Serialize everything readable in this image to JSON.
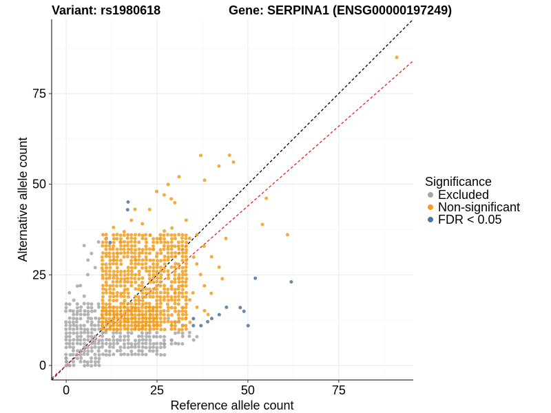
{
  "chart_data": {
    "type": "scatter",
    "title_left": "Variant: rs1980618",
    "title_right": "Gene: SERPINA1 (ENSG00000197249)",
    "xlabel": "Reference allele count",
    "ylabel": "Alternative allele count",
    "xlim": [
      -4,
      95.5
    ],
    "ylim": [
      -4,
      95.5
    ],
    "x_ticks": [
      0,
      25,
      50,
      75
    ],
    "y_ticks": [
      0,
      25,
      50,
      75
    ],
    "grid": true,
    "legend": {
      "title": "Significance",
      "position": "right",
      "entries": [
        {
          "label": "Excluded",
          "color": "#a6a6a6"
        },
        {
          "label": "Non-significant",
          "color": "#f39c1a"
        },
        {
          "label": "FDR < 0.05",
          "color": "#4a74a0"
        }
      ]
    },
    "reference_lines": [
      {
        "name": "identity (y = x)",
        "slope": 1.0,
        "intercept": 0,
        "color": "#000000",
        "dash": "dashed"
      },
      {
        "name": "fitted ratio",
        "slope": 0.88,
        "intercept": 0,
        "color": "#e8201e",
        "dash": "dashed"
      }
    ],
    "series": [
      {
        "name": "Excluded",
        "color": "#a6a6a6",
        "clusters": [
          {
            "x_range": [
              0,
              9
            ],
            "y_range": [
              0,
              17
            ],
            "density": 0.82
          },
          {
            "x_range": [
              10,
              27
            ],
            "y_range": [
              3,
              9
            ],
            "density": 0.8
          },
          {
            "x_range": [
              27,
              35
            ],
            "y_range": [
              6,
              10
            ],
            "density": 0.3
          }
        ],
        "points": [
          [
            9,
            34
          ],
          [
            11,
            35
          ],
          [
            13,
            29
          ],
          [
            14,
            31
          ],
          [
            7,
            31
          ],
          [
            8,
            27
          ],
          [
            6,
            29
          ],
          [
            5,
            33
          ],
          [
            4,
            22
          ],
          [
            3,
            22
          ],
          [
            6,
            25
          ],
          [
            2,
            18
          ],
          [
            1,
            20
          ],
          [
            3,
            17
          ],
          [
            5,
            19
          ],
          [
            28,
            13
          ],
          [
            30,
            12
          ],
          [
            32,
            11
          ],
          [
            34,
            9
          ],
          [
            36,
            8
          ],
          [
            29,
            7
          ],
          [
            31,
            9
          ],
          [
            0,
            0
          ],
          [
            1,
            0
          ],
          [
            0,
            1
          ],
          [
            0,
            2
          ]
        ]
      },
      {
        "name": "Non-significant",
        "color": "#f39c1a",
        "clusters": [
          {
            "x_range": [
              10,
              33
            ],
            "y_range": [
              10,
              36
            ],
            "density": 0.75
          },
          {
            "x_range": [
              10,
              25
            ],
            "y_range": [
              10,
              16
            ],
            "density": 0.98
          }
        ],
        "points": [
          [
            91,
            85
          ],
          [
            37,
            58
          ],
          [
            45,
            58
          ],
          [
            46,
            56
          ],
          [
            42,
            55
          ],
          [
            31,
            52
          ],
          [
            38,
            51
          ],
          [
            28,
            50
          ],
          [
            25,
            48
          ],
          [
            27,
            47
          ],
          [
            29,
            46
          ],
          [
            55,
            46
          ],
          [
            30,
            45
          ],
          [
            19,
            43
          ],
          [
            23,
            43
          ],
          [
            33,
            40
          ],
          [
            54,
            39
          ],
          [
            61,
            36
          ],
          [
            36,
            36
          ],
          [
            44,
            35
          ],
          [
            38,
            33
          ],
          [
            34,
            35
          ],
          [
            35,
            30
          ],
          [
            36,
            28
          ],
          [
            40,
            30
          ],
          [
            42,
            27
          ],
          [
            37,
            25
          ],
          [
            38,
            22
          ],
          [
            40,
            20
          ],
          [
            43,
            24
          ],
          [
            35,
            20
          ],
          [
            34,
            18
          ],
          [
            36,
            16
          ],
          [
            38,
            15
          ],
          [
            33,
            13
          ],
          [
            39,
            14
          ],
          [
            32,
            16
          ],
          [
            31,
            12
          ],
          [
            34,
            12
          ],
          [
            28,
            14
          ],
          [
            29,
            11
          ],
          [
            13,
            38
          ],
          [
            16,
            37
          ],
          [
            18,
            40
          ],
          [
            21,
            39
          ],
          [
            23,
            36
          ],
          [
            15,
            34
          ],
          [
            24,
            32
          ],
          [
            26,
            35
          ],
          [
            29,
            38
          ],
          [
            27,
            37
          ],
          [
            22,
            27
          ],
          [
            19,
            29
          ],
          [
            31,
            24
          ],
          [
            30,
            20
          ],
          [
            32,
            22
          ]
        ]
      },
      {
        "name": "FDR < 0.05",
        "color": "#4a74a0",
        "points": [
          [
            17,
            45
          ],
          [
            17,
            43
          ],
          [
            12,
            34
          ],
          [
            52,
            24
          ],
          [
            62,
            23
          ],
          [
            48,
            16
          ],
          [
            44,
            16
          ],
          [
            49,
            15
          ],
          [
            42,
            14
          ],
          [
            40,
            13
          ],
          [
            39,
            12
          ],
          [
            50,
            11
          ],
          [
            37,
            11
          ],
          [
            35,
            11
          ],
          [
            35,
            13
          ]
        ]
      }
    ]
  }
}
